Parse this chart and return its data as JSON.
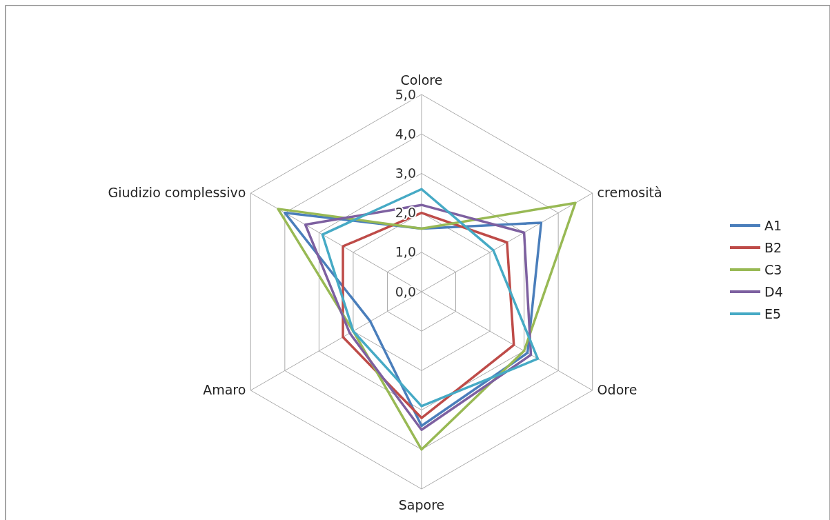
{
  "chart_data": {
    "type": "radar",
    "categories": [
      "Colore",
      "cremosità",
      "Odore",
      "Sapore",
      "Amaro",
      "Giudizio complessivo"
    ],
    "series": [
      {
        "name": "A1",
        "color": "#4a7ebb",
        "values": [
          1.6,
          3.5,
          3.1,
          3.4,
          1.5,
          4.0
        ]
      },
      {
        "name": "B2",
        "color": "#be4b48",
        "values": [
          2.0,
          2.5,
          2.7,
          3.2,
          2.3,
          2.3
        ]
      },
      {
        "name": "C3",
        "color": "#98b954",
        "values": [
          1.6,
          4.5,
          3.0,
          4.0,
          2.0,
          4.2
        ]
      },
      {
        "name": "D4",
        "color": "#7d60a0",
        "values": [
          2.2,
          3.0,
          3.2,
          3.5,
          2.1,
          3.4
        ]
      },
      {
        "name": "E5",
        "color": "#46aac5",
        "values": [
          2.6,
          2.1,
          3.4,
          2.9,
          2.0,
          2.9
        ]
      }
    ],
    "ylim": [
      0,
      5
    ],
    "yticks": [
      {
        "value": 0,
        "label": "0,0"
      },
      {
        "value": 1,
        "label": "1,0"
      },
      {
        "value": 2,
        "label": "2,0"
      },
      {
        "value": 3,
        "label": "3,0"
      },
      {
        "value": 4,
        "label": "4,0"
      },
      {
        "value": 5,
        "label": "5,0"
      }
    ],
    "grid": true,
    "legend": "right"
  }
}
